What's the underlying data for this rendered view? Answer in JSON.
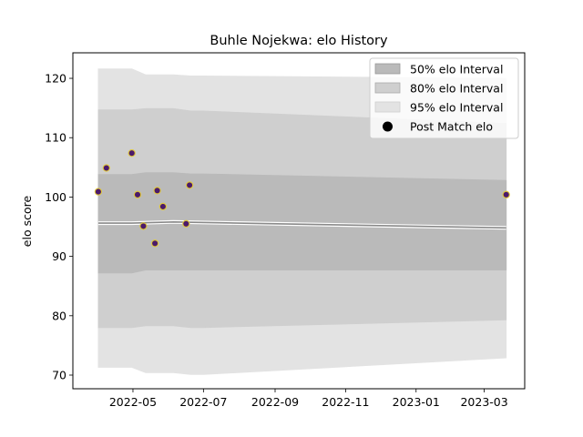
{
  "chart_data": {
    "type": "line",
    "title": "Buhle Nojekwa: elo History",
    "xlabel": "",
    "ylabel": "elo score",
    "xlim": [
      "2022-03-10",
      "2023-04-05"
    ],
    "ylim": [
      67.7,
      124.3
    ],
    "x_ticks": [
      "2022-05",
      "2022-07",
      "2022-09",
      "2022-11",
      "2023-01",
      "2023-03"
    ],
    "y_ticks": [
      70,
      80,
      90,
      100,
      110,
      120
    ],
    "legend": {
      "position": "top-right",
      "entries": [
        "50% elo Interval",
        "80% elo Interval",
        "95% elo Interval",
        "Post Match elo"
      ]
    },
    "bands": [
      {
        "name": "95% elo Interval",
        "color": "#e3e3e3",
        "x": [
          "2022-04-01",
          "2022-04-30",
          "2022-05-12",
          "2022-06-05",
          "2022-06-20",
          "2022-07-01",
          "2023-03-20"
        ],
        "upper": [
          121.6,
          121.6,
          120.6,
          120.6,
          120.4,
          120.4,
          120.0
        ],
        "lower": [
          71.3,
          71.3,
          70.4,
          70.4,
          70.1,
          70.1,
          72.9
        ]
      },
      {
        "name": "80% elo Interval",
        "color": "#cfcfcf",
        "x": [
          "2022-04-01",
          "2022-04-30",
          "2022-05-12",
          "2022-06-05",
          "2022-06-20",
          "2022-07-01",
          "2023-03-20"
        ],
        "upper": [
          114.7,
          114.7,
          114.9,
          114.9,
          114.5,
          114.5,
          112.4
        ],
        "lower": [
          78.0,
          78.0,
          78.3,
          78.3,
          78.0,
          78.0,
          79.3
        ]
      },
      {
        "name": "50% elo Interval",
        "color": "#bababa",
        "x": [
          "2022-04-01",
          "2022-04-30",
          "2022-05-12",
          "2022-06-05",
          "2022-06-20",
          "2022-07-01",
          "2023-03-20"
        ],
        "upper": [
          103.8,
          103.8,
          104.1,
          104.1,
          103.9,
          103.9,
          102.8
        ],
        "lower": [
          87.2,
          87.2,
          87.7,
          87.7,
          87.7,
          87.7,
          87.7
        ]
      }
    ],
    "mean_line": {
      "x": [
        "2022-04-01",
        "2022-04-30",
        "2022-06-05",
        "2023-03-20"
      ],
      "y": [
        95.6,
        95.6,
        95.8,
        94.8
      ]
    },
    "series": [
      {
        "name": "Post Match elo",
        "x": [
          "2022-04-01",
          "2022-04-08",
          "2022-04-30",
          "2022-05-05",
          "2022-05-10",
          "2022-05-20",
          "2022-05-22",
          "2022-05-27",
          "2022-06-16",
          "2022-06-19",
          "2023-03-20"
        ],
        "y": [
          100.9,
          104.9,
          107.4,
          100.4,
          95.1,
          92.2,
          101.1,
          98.4,
          95.5,
          102.0,
          100.4
        ]
      }
    ],
    "marker_face": "#4b1a6b",
    "marker_edge": "#e0c83a",
    "grid": false
  }
}
